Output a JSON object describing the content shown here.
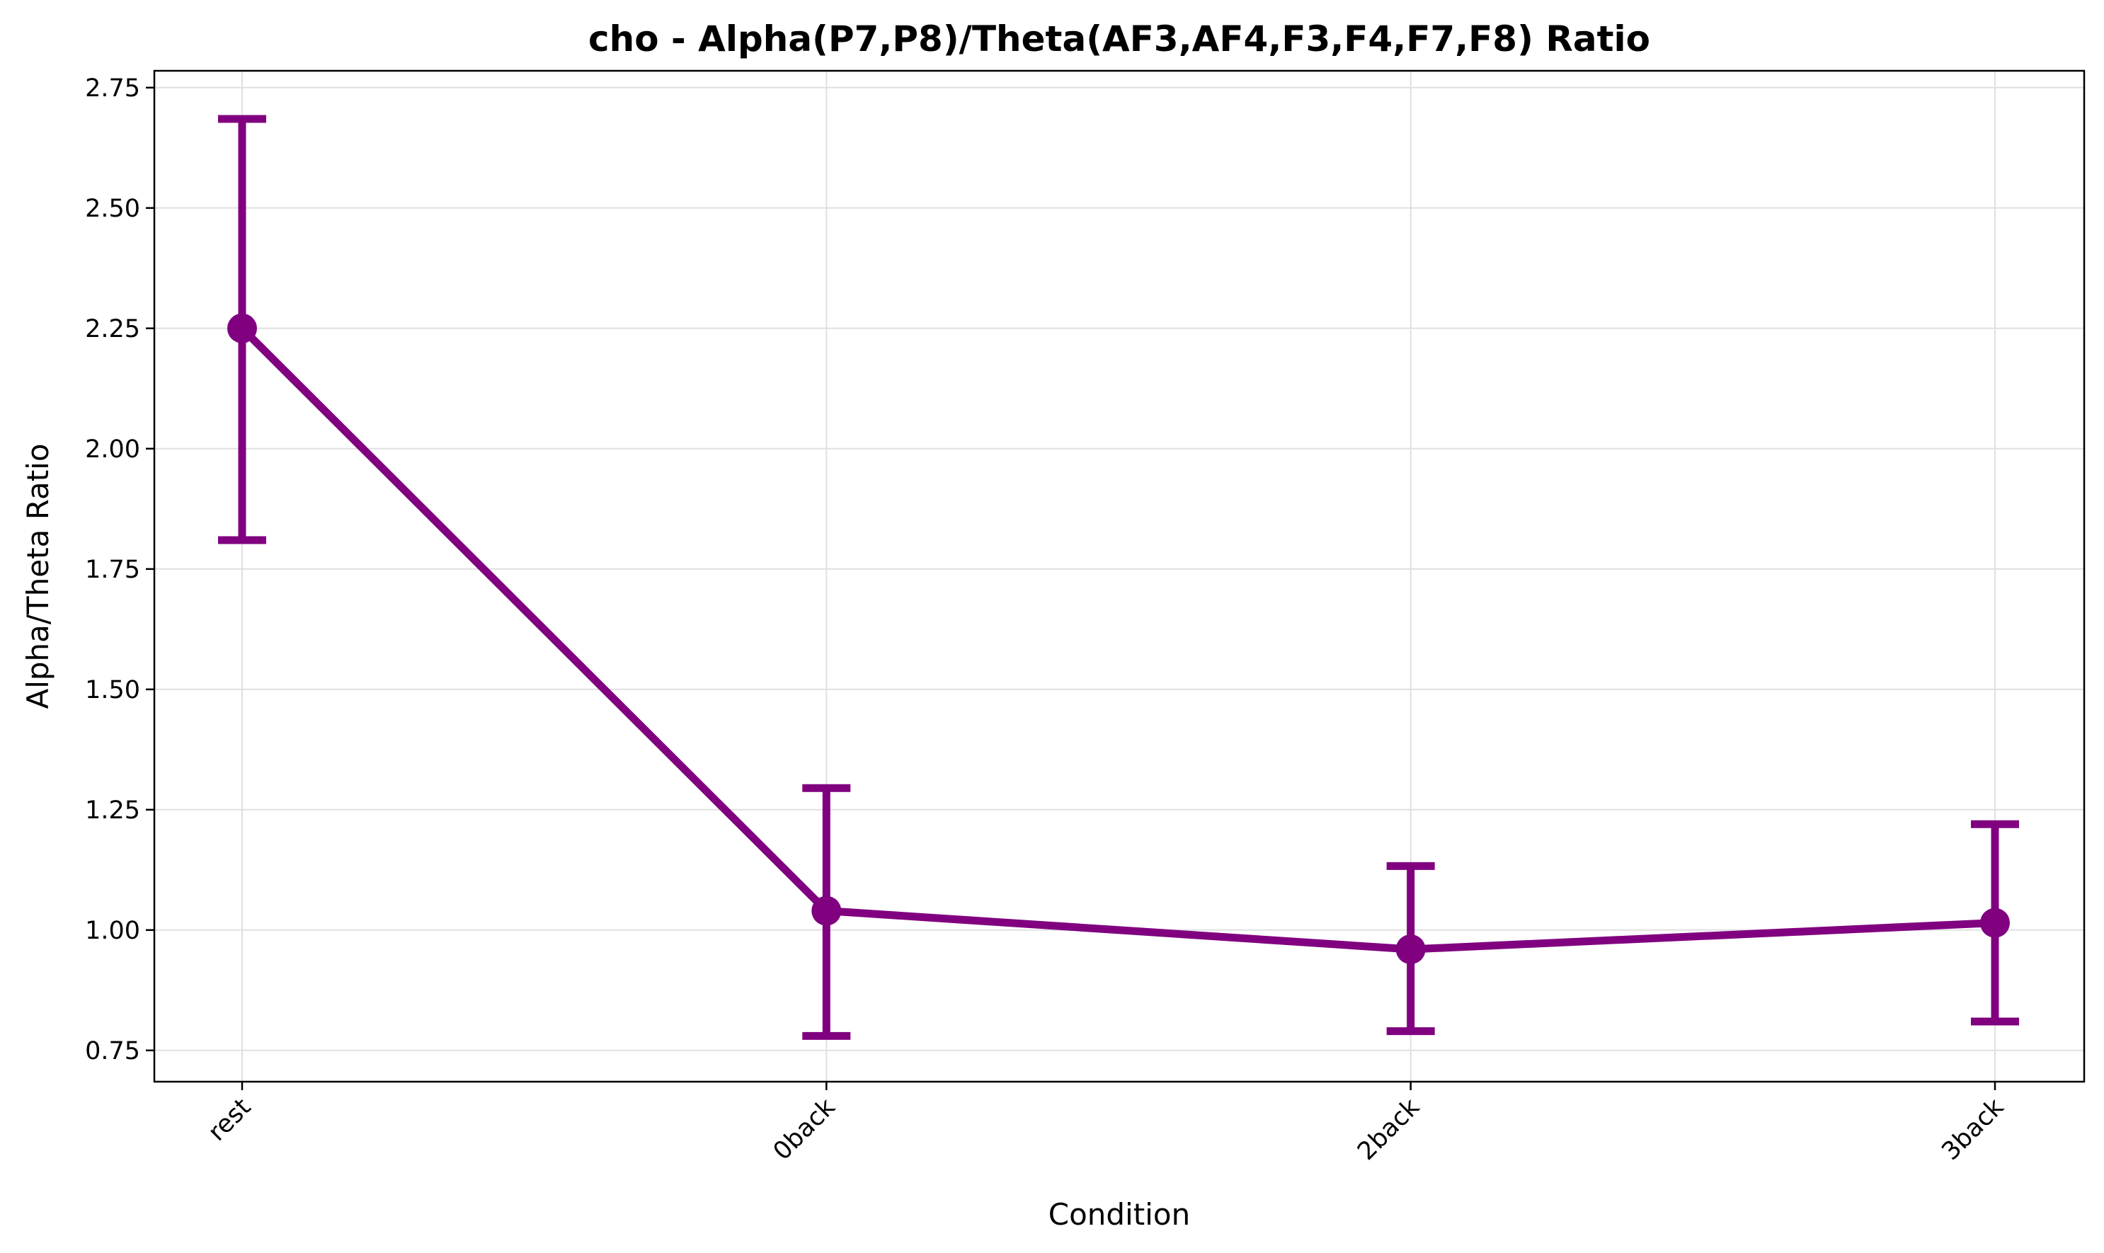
{
  "chart_data": {
    "type": "line",
    "title": "cho - Alpha(P7,P8)/Theta(AF3,AF4,F3,F4,F7,F8) Ratio",
    "xlabel": "Condition",
    "ylabel": "Alpha/Theta Ratio",
    "categories": [
      "rest",
      "0back",
      "2back",
      "3back"
    ],
    "series": [
      {
        "values": [
          2.25,
          1.04,
          0.96,
          1.015
        ],
        "error_upper": [
          2.685,
          1.295,
          1.133,
          1.22
        ],
        "error_lower": [
          1.81,
          0.78,
          0.79,
          0.81
        ]
      }
    ],
    "ylim": [
      0.685,
      2.785
    ],
    "yticks": [
      0.75,
      1.0,
      1.25,
      1.5,
      1.75,
      2.0,
      2.25,
      2.5,
      2.75
    ],
    "ytick_labels": [
      "0.75",
      "1.00",
      "1.25",
      "1.50",
      "1.75",
      "2.00",
      "2.25",
      "2.50",
      "2.75"
    ],
    "grid": true,
    "x_tick_rotation": 45,
    "colors": {
      "series": "#800080",
      "grid": "#e0e0e0",
      "axes": "#000000"
    }
  }
}
